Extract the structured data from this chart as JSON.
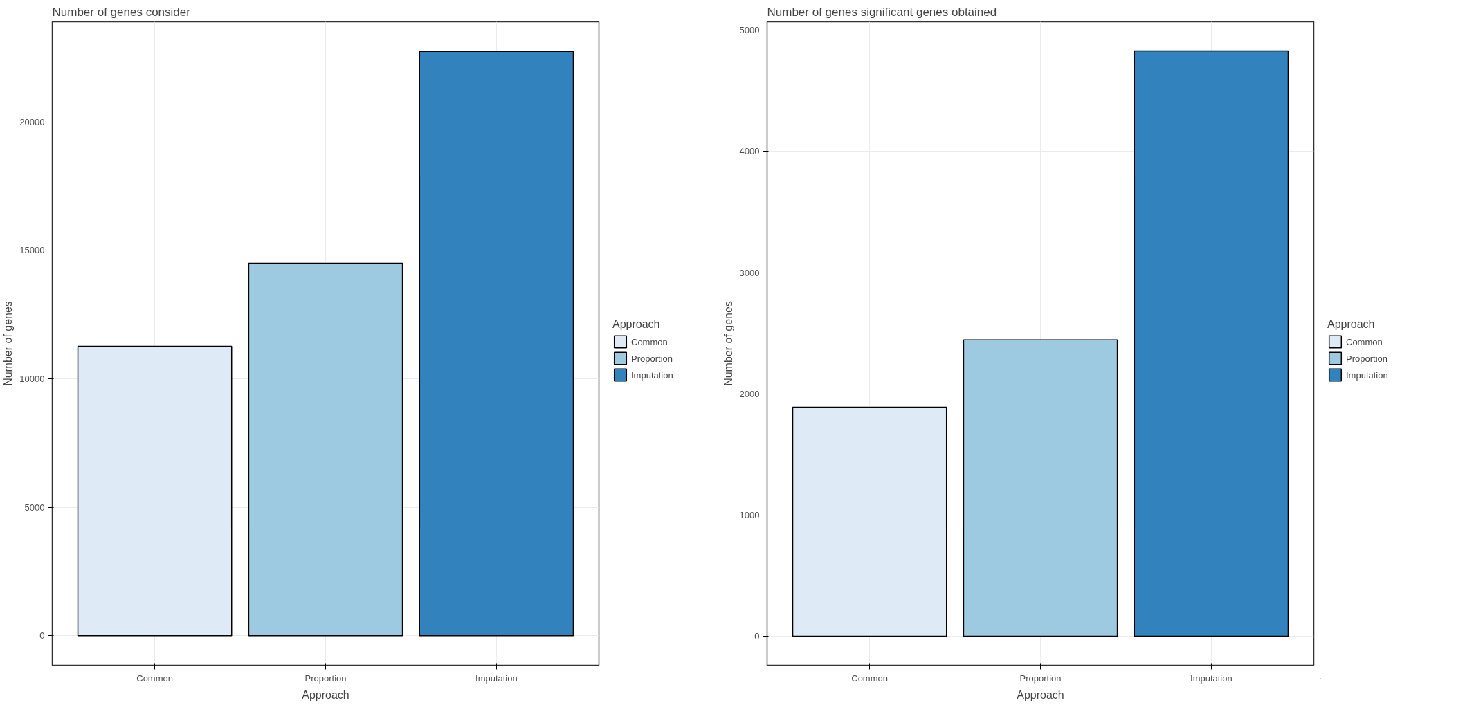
{
  "chart_data": [
    {
      "type": "bar",
      "title": "Number of genes consider",
      "xlabel": "Approach",
      "ylabel": "Number of genes",
      "legend_title": "Approach",
      "categories": [
        "Common",
        "Proportion",
        "Imputation"
      ],
      "series": [
        {
          "name": "Common",
          "color": "#deebf7",
          "values": [
            11270,
            null,
            null
          ]
        },
        {
          "name": "Proportion",
          "color": "#9ecae1",
          "values": [
            null,
            14500,
            null
          ]
        },
        {
          "name": "Imputation",
          "color": "#3182bd",
          "values": [
            null,
            null,
            22750
          ]
        }
      ],
      "ylim": [
        -1150,
        23900
      ],
      "yticks": [
        0,
        5000,
        10000,
        15000,
        20000
      ],
      "grid": true,
      "legend": "right"
    },
    {
      "type": "bar",
      "title": "Number of genes significant genes obtained",
      "xlabel": "Approach",
      "ylabel": "Number of genes",
      "legend_title": "Approach",
      "categories": [
        "Common",
        "Proportion",
        "Imputation"
      ],
      "series": [
        {
          "name": "Common",
          "color": "#deebf7",
          "values": [
            1890,
            null,
            null
          ]
        },
        {
          "name": "Proportion",
          "color": "#9ecae1",
          "values": [
            null,
            2445,
            null
          ]
        },
        {
          "name": "Imputation",
          "color": "#3182bd",
          "values": [
            null,
            null,
            4830
          ]
        }
      ],
      "ylim": [
        -240,
        5070
      ],
      "yticks": [
        0,
        1000,
        2000,
        3000,
        4000,
        5000
      ],
      "grid": true,
      "legend": "right"
    }
  ]
}
